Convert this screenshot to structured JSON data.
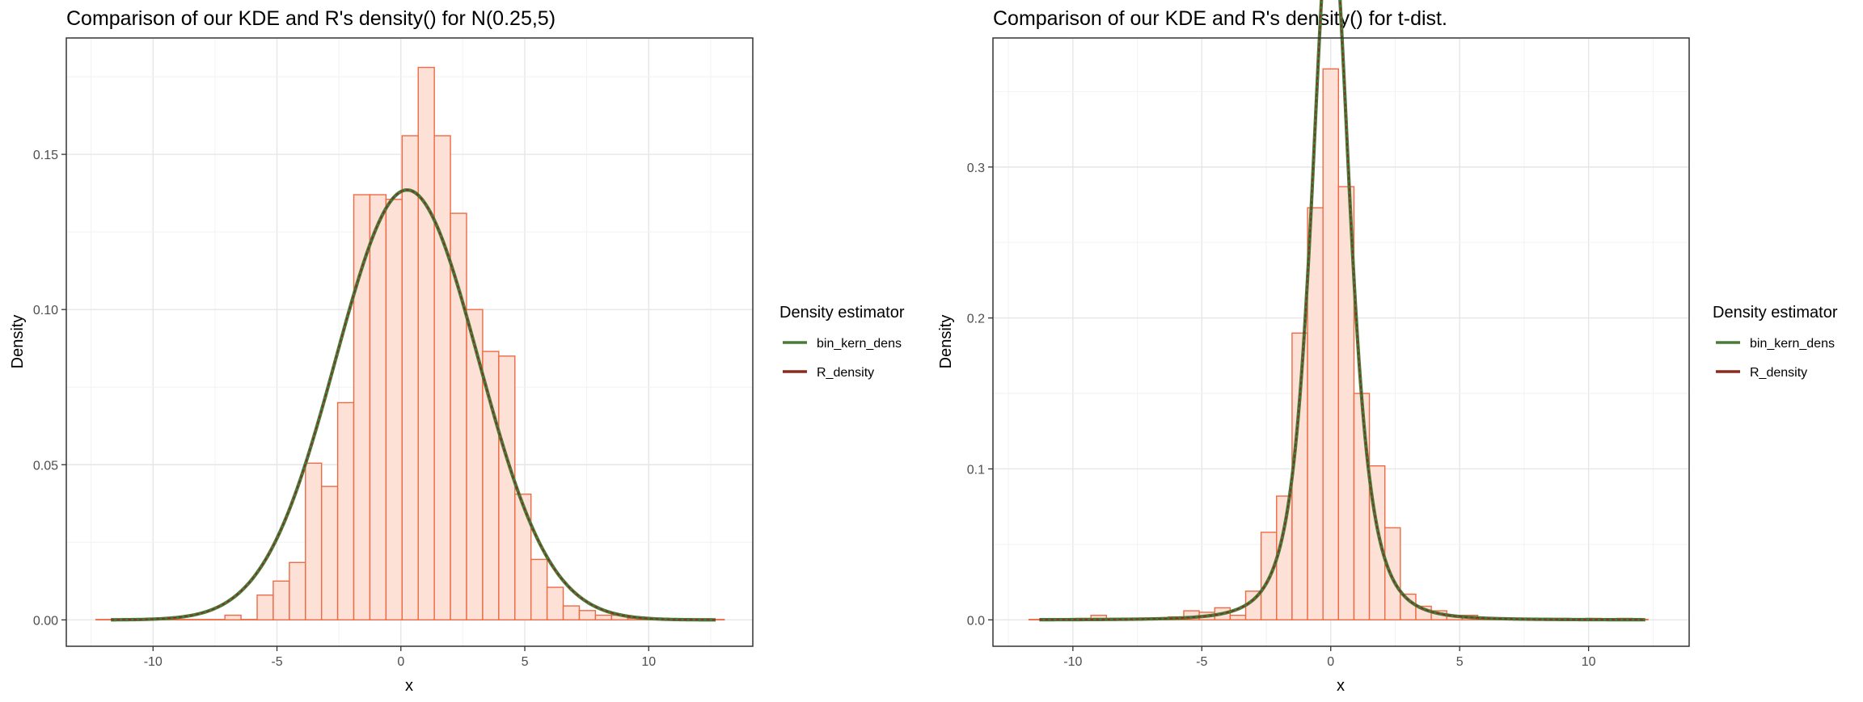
{
  "colors": {
    "bar_fill": "#fde0d6",
    "bar_stroke": "#ee6a45",
    "bin_kern_dens": "#4a7a3a",
    "R_density": "#8b2a1e",
    "grid_major": "#e6e6e6",
    "grid_minor": "#f2f2f2",
    "panel_border": "#333333",
    "text": "#000000",
    "tick_text": "#4d4d4d"
  },
  "chart_data": [
    {
      "type": "bar",
      "title": "Comparison of our KDE and R's density() for N(0.25,5)",
      "xlabel": "x",
      "ylabel": "Density",
      "xlim": [
        -13.5,
        14.2
      ],
      "ylim": [
        -0.0085,
        0.1875
      ],
      "x_ticks": [
        -10,
        -5,
        0,
        5,
        10
      ],
      "x_tick_labels": [
        "-10",
        "-5",
        "0",
        "5",
        "10"
      ],
      "y_ticks": [
        0.0,
        0.05,
        0.1,
        0.15
      ],
      "y_tick_labels": [
        "0.00",
        "0.05",
        "0.10",
        "0.15"
      ],
      "grid": true,
      "legend": {
        "title": "Density estimator",
        "position": "right",
        "entries": [
          "bin_kern_dens",
          "R_density"
        ]
      },
      "bin_width": 0.65,
      "bin_edges": [
        -12.3,
        -11.65,
        -11.0,
        -10.35,
        -9.7,
        -9.05,
        -8.4,
        -7.75,
        -7.1,
        -6.45,
        -5.8,
        -5.15,
        -4.5,
        -3.85,
        -3.2,
        -2.55,
        -1.9,
        -1.25,
        -0.6,
        0.05,
        0.7,
        1.35,
        2.0,
        2.65,
        3.3,
        3.95,
        4.6,
        5.25,
        5.9,
        6.55,
        7.2,
        7.85,
        8.5,
        9.15,
        9.8,
        10.45,
        11.1,
        11.75,
        12.4,
        13.05
      ],
      "bin_values": [
        0.0,
        0.0,
        0.0,
        0.0,
        0.0,
        0.0,
        0.0,
        0.0,
        0.0015,
        0.0,
        0.008,
        0.0125,
        0.0185,
        0.0505,
        0.043,
        0.07,
        0.137,
        0.137,
        0.1355,
        0.156,
        0.178,
        0.156,
        0.131,
        0.1,
        0.0865,
        0.085,
        0.0405,
        0.0195,
        0.0105,
        0.0045,
        0.003,
        0.0015,
        0.0015,
        0.0005,
        0.0,
        0.0,
        0.0,
        0.0,
        0.0
      ],
      "series": [
        {
          "name": "bin_kern_dens",
          "mean": 0.25,
          "sd": 2.88,
          "x_range": [
            -11.7,
            12.7
          ]
        },
        {
          "name": "R_density",
          "mean": 0.25,
          "sd": 2.88,
          "x_range": [
            -11.7,
            12.7
          ]
        }
      ]
    },
    {
      "type": "bar",
      "title": "Comparison of our KDE and R's density() for t-dist.",
      "xlabel": "x",
      "ylabel": "Density",
      "xlim": [
        -13.1,
        13.9
      ],
      "ylim": [
        -0.0175,
        0.3855
      ],
      "x_ticks": [
        -10,
        -5,
        0,
        5,
        10
      ],
      "x_tick_labels": [
        "-10",
        "-5",
        "0",
        "5",
        "10"
      ],
      "y_ticks": [
        0.0,
        0.1,
        0.2,
        0.3
      ],
      "y_tick_labels": [
        "0.0",
        "0.1",
        "0.2",
        "0.3"
      ],
      "grid": true,
      "legend": {
        "title": "Density estimator",
        "position": "right",
        "entries": [
          "bin_kern_dens",
          "R_density"
        ]
      },
      "bin_width": 0.6,
      "bin_edges": [
        -11.7,
        -11.1,
        -10.5,
        -9.9,
        -9.3,
        -8.7,
        -8.1,
        -7.5,
        -6.9,
        -6.3,
        -5.7,
        -5.1,
        -4.5,
        -3.9,
        -3.3,
        -2.7,
        -2.1,
        -1.5,
        -0.9,
        -0.3,
        0.3,
        0.9,
        1.5,
        2.1,
        2.7,
        3.3,
        3.9,
        4.5,
        5.1,
        5.7,
        6.3,
        6.9,
        7.5,
        8.1,
        8.7,
        9.3,
        9.9,
        10.5,
        11.1,
        11.7,
        12.3
      ],
      "bin_values": [
        0.0,
        0.0,
        0.0,
        0.001,
        0.003,
        0.001,
        0.0,
        0.0,
        0.001,
        0.002,
        0.006,
        0.005,
        0.008,
        0.003,
        0.019,
        0.058,
        0.082,
        0.19,
        0.273,
        0.365,
        0.287,
        0.15,
        0.102,
        0.061,
        0.017,
        0.009,
        0.006,
        0.003,
        0.003,
        0.001,
        0.001,
        0.001,
        0.001,
        0.001,
        0.001,
        0.0,
        0.001,
        0.0,
        0.001,
        0.0
      ],
      "series": [
        {
          "name": "bin_kern_dens",
          "df": 3,
          "scale": 0.78,
          "x_range": [
            -11.3,
            12.2
          ]
        },
        {
          "name": "R_density",
          "df": 3,
          "scale": 0.78,
          "x_range": [
            -11.3,
            12.2
          ]
        }
      ]
    }
  ]
}
